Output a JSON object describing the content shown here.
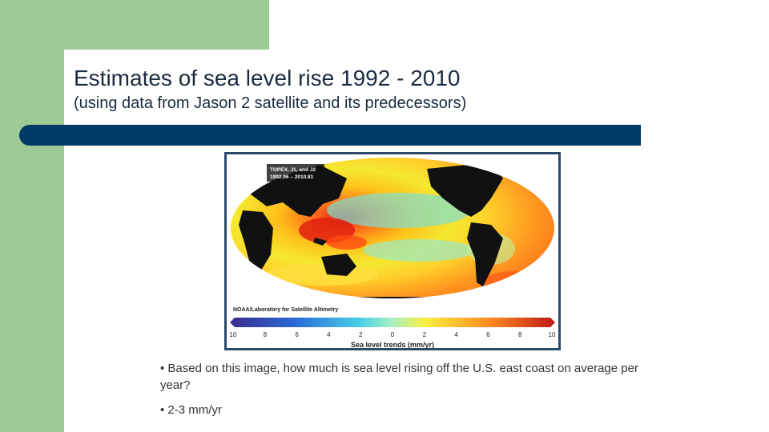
{
  "slide": {
    "title": "Estimates of sea level rise 1992 - 2010",
    "subtitle": "(using data from Jason 2 satellite and its predecessors)"
  },
  "figure": {
    "map_label_line1": "TOPEX, J1, and J2",
    "map_label_line2": "1992.96 – 2010.81",
    "credit": "NOAA/Laboratory for Satellite Altimetry",
    "scale_ticks": [
      "10",
      "8",
      "6",
      "4",
      "2",
      "0",
      "2",
      "4",
      "6",
      "8",
      "10"
    ],
    "scale_title": "Sea level trends (mm/yr)",
    "colors": {
      "frame": "#2b4a6a",
      "scale_low": "#3a2a8a",
      "scale_high": "#c01818"
    }
  },
  "bullets": [
    "• Based on this image, how much is sea level rising off the U.S. east coast on average per year?",
    "• 2-3 mm/yr"
  ],
  "theme": {
    "green": "#9dcb96",
    "navy_bar": "#003a66"
  }
}
